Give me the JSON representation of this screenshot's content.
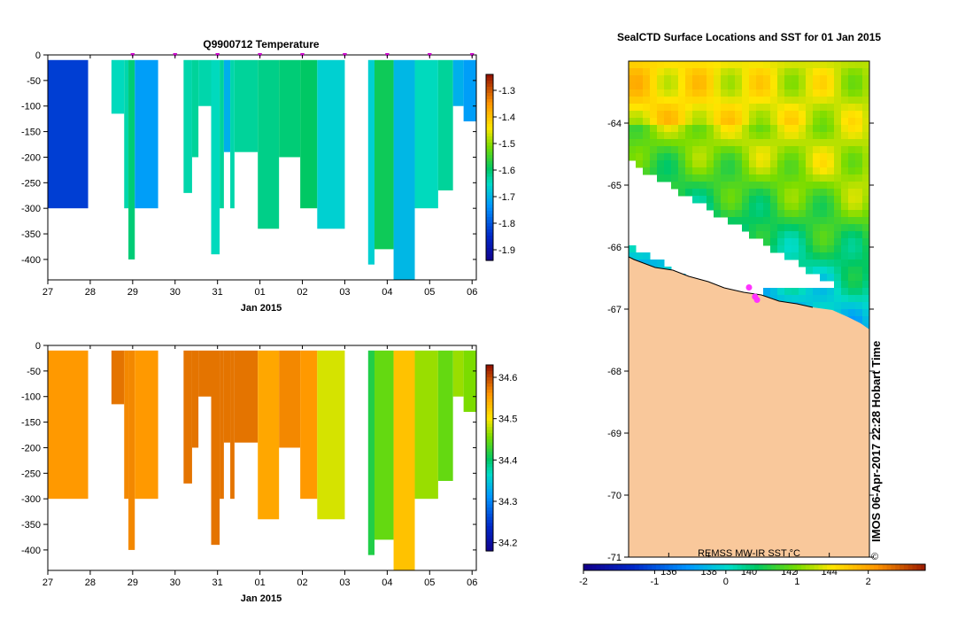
{
  "chart_data": [
    {
      "type": "heatmap",
      "title": "Q9900712  Temperature",
      "xlabel": "Jan 2015",
      "ylabel": "",
      "x_ticks": [
        "27",
        "28",
        "29",
        "30",
        "31",
        "01",
        "02",
        "03",
        "04",
        "05",
        "06"
      ],
      "x_range": [
        27,
        37.1
      ],
      "y_ticks": [
        "0",
        "-50",
        "-100",
        "-150",
        "-200",
        "-250",
        "-300",
        "-350",
        "-400"
      ],
      "y_range": [
        -440,
        0
      ],
      "colorbar_ticks": [
        "-1.3",
        "-1.4",
        "-1.5",
        "-1.6",
        "-1.7",
        "-1.8",
        "-1.9"
      ],
      "colorbar_range": [
        -1.94,
        -1.24
      ],
      "profile_marker_days": [
        29.0,
        30.0,
        31.0,
        32.0,
        33.0,
        34.0,
        35.0,
        36.0,
        37.0
      ],
      "marker_color": "#cc00cc",
      "profiles": [
        {
          "x0": 27.0,
          "x1": 27.95,
          "depth": 300,
          "value": -1.82
        },
        {
          "x0": 28.5,
          "x1": 28.8,
          "depth": 115,
          "value": -1.64
        },
        {
          "x0": 28.8,
          "x1": 28.9,
          "depth": 300,
          "value": -1.63
        },
        {
          "x0": 28.9,
          "x1": 29.05,
          "depth": 400,
          "value": -1.6
        },
        {
          "x0": 29.05,
          "x1": 29.6,
          "depth": 300,
          "value": -1.72
        },
        {
          "x0": 30.2,
          "x1": 30.4,
          "depth": 270,
          "value": -1.63
        },
        {
          "x0": 30.4,
          "x1": 30.55,
          "depth": 200,
          "value": -1.62
        },
        {
          "x0": 30.55,
          "x1": 30.85,
          "depth": 100,
          "value": -1.63
        },
        {
          "x0": 30.85,
          "x1": 31.05,
          "depth": 390,
          "value": -1.64
        },
        {
          "x0": 31.05,
          "x1": 31.15,
          "depth": 300,
          "value": -1.62
        },
        {
          "x0": 31.15,
          "x1": 31.3,
          "depth": 190,
          "value": -1.7
        },
        {
          "x0": 31.3,
          "x1": 31.4,
          "depth": 300,
          "value": -1.63
        },
        {
          "x0": 31.4,
          "x1": 31.95,
          "depth": 190,
          "value": -1.62
        },
        {
          "x0": 31.95,
          "x1": 32.45,
          "depth": 340,
          "value": -1.61
        },
        {
          "x0": 32.45,
          "x1": 32.95,
          "depth": 200,
          "value": -1.6
        },
        {
          "x0": 32.95,
          "x1": 33.35,
          "depth": 300,
          "value": -1.59
        },
        {
          "x0": 33.35,
          "x1": 34.0,
          "depth": 340,
          "value": -1.66
        },
        {
          "x0": 34.55,
          "x1": 34.7,
          "depth": 410,
          "value": -1.66
        },
        {
          "x0": 34.7,
          "x1": 35.15,
          "depth": 380,
          "value": -1.58
        },
        {
          "x0": 35.15,
          "x1": 35.65,
          "depth": 440,
          "value": -1.69
        },
        {
          "x0": 35.65,
          "x1": 36.2,
          "depth": 300,
          "value": -1.64
        },
        {
          "x0": 36.2,
          "x1": 36.55,
          "depth": 265,
          "value": -1.62
        },
        {
          "x0": 36.55,
          "x1": 36.8,
          "depth": 100,
          "value": -1.7
        },
        {
          "x0": 36.8,
          "x1": 37.1,
          "depth": 130,
          "value": -1.72
        }
      ]
    },
    {
      "type": "heatmap",
      "title": "",
      "xlabel": "Jan 2015",
      "ylabel": "",
      "x_ticks": [
        "27",
        "28",
        "29",
        "30",
        "31",
        "01",
        "02",
        "03",
        "04",
        "05",
        "06"
      ],
      "x_range": [
        27,
        37.1
      ],
      "y_ticks": [
        "0",
        "-50",
        "-100",
        "-150",
        "-200",
        "-250",
        "-300",
        "-350",
        "-400"
      ],
      "y_range": [
        -440,
        0
      ],
      "colorbar_ticks": [
        "34.6",
        "34.5",
        "34.4",
        "34.3",
        "34.2"
      ],
      "colorbar_range": [
        34.18,
        34.63
      ],
      "profiles": [
        {
          "x0": 27.0,
          "x1": 27.95,
          "depth": 300,
          "value": 34.56
        },
        {
          "x0": 28.5,
          "x1": 28.8,
          "depth": 115,
          "value": 34.58
        },
        {
          "x0": 28.8,
          "x1": 28.9,
          "depth": 300,
          "value": 34.57
        },
        {
          "x0": 28.9,
          "x1": 29.05,
          "depth": 400,
          "value": 34.57
        },
        {
          "x0": 29.05,
          "x1": 29.6,
          "depth": 300,
          "value": 34.56
        },
        {
          "x0": 30.2,
          "x1": 30.4,
          "depth": 270,
          "value": 34.58
        },
        {
          "x0": 30.4,
          "x1": 30.55,
          "depth": 200,
          "value": 34.58
        },
        {
          "x0": 30.55,
          "x1": 30.85,
          "depth": 100,
          "value": 34.58
        },
        {
          "x0": 30.85,
          "x1": 31.05,
          "depth": 390,
          "value": 34.58
        },
        {
          "x0": 31.05,
          "x1": 31.15,
          "depth": 300,
          "value": 34.58
        },
        {
          "x0": 31.15,
          "x1": 31.3,
          "depth": 190,
          "value": 34.58
        },
        {
          "x0": 31.3,
          "x1": 31.4,
          "depth": 300,
          "value": 34.58
        },
        {
          "x0": 31.4,
          "x1": 31.95,
          "depth": 190,
          "value": 34.58
        },
        {
          "x0": 31.95,
          "x1": 32.45,
          "depth": 340,
          "value": 34.55
        },
        {
          "x0": 32.45,
          "x1": 32.95,
          "depth": 200,
          "value": 34.57
        },
        {
          "x0": 32.95,
          "x1": 33.35,
          "depth": 300,
          "value": 34.56
        },
        {
          "x0": 33.35,
          "x1": 34.0,
          "depth": 340,
          "value": 34.49
        },
        {
          "x0": 34.55,
          "x1": 34.7,
          "depth": 410,
          "value": 34.42
        },
        {
          "x0": 34.7,
          "x1": 35.15,
          "depth": 380,
          "value": 34.45
        },
        {
          "x0": 35.15,
          "x1": 35.65,
          "depth": 440,
          "value": 34.53
        },
        {
          "x0": 35.65,
          "x1": 36.2,
          "depth": 300,
          "value": 34.47
        },
        {
          "x0": 36.2,
          "x1": 36.55,
          "depth": 265,
          "value": 34.45
        },
        {
          "x0": 36.55,
          "x1": 36.8,
          "depth": 100,
          "value": 34.47
        },
        {
          "x0": 36.8,
          "x1": 37.1,
          "depth": 130,
          "value": 34.46
        }
      ]
    },
    {
      "type": "heatmap",
      "title": "SealCTD Surface Locations and SST for 01 Jan 2015",
      "xlabel": "",
      "ylabel": "",
      "y_ticks": [
        "-64",
        "-65",
        "-66",
        "-67",
        "-68",
        "-69",
        "-70",
        "-71"
      ],
      "y_range": [
        -71,
        -63.0
      ],
      "x_ticks": [
        "136",
        "138",
        "140",
        "142",
        "144"
      ],
      "x_range": [
        134,
        146
      ],
      "colorbar_label": "REMSS MW-IR SST °C",
      "colorbar_ticks": [
        "-2",
        "-1",
        "0",
        "1",
        "2"
      ],
      "colorbar_range": [
        -2,
        2.8
      ],
      "land_color": "#f9c89b",
      "seal_positions": [
        {
          "lon": 140.0,
          "lat": -66.65
        },
        {
          "lon": 140.3,
          "lat": -66.8
        },
        {
          "lon": 140.4,
          "lat": -66.85
        }
      ]
    }
  ],
  "watermark": "IMOS 06-Apr-2017 22:28 Hobart Time",
  "copyright_mark": "©"
}
